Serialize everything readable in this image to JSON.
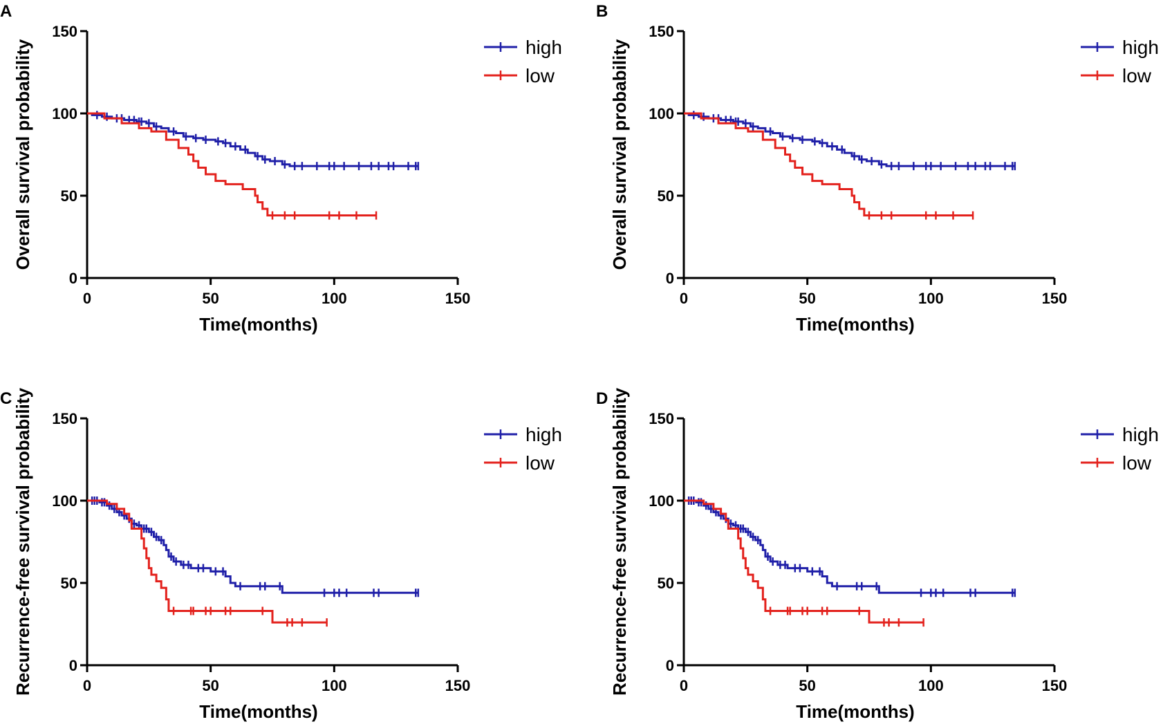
{
  "chart_data": [
    {
      "panel": "A",
      "type": "line",
      "title": "",
      "xlabel": "Time(months)",
      "ylabel": "Overall survival probability",
      "xlim": [
        0,
        150
      ],
      "ylim": [
        0,
        150
      ],
      "xticks": [
        0,
        50,
        100,
        150
      ],
      "yticks": [
        0,
        50,
        100,
        150
      ],
      "legend": "top-right",
      "series": [
        {
          "name": "high",
          "color": "#1f1fa8",
          "steps": [
            [
              0,
              100
            ],
            [
              2,
              99
            ],
            [
              6,
              98
            ],
            [
              10,
              97
            ],
            [
              15,
              96
            ],
            [
              20,
              95
            ],
            [
              24,
              94
            ],
            [
              27,
              92
            ],
            [
              30,
              91
            ],
            [
              33,
              89
            ],
            [
              36,
              88
            ],
            [
              39,
              86
            ],
            [
              43,
              85
            ],
            [
              47,
              84
            ],
            [
              52,
              83
            ],
            [
              55,
              82
            ],
            [
              58,
              80
            ],
            [
              62,
              78
            ],
            [
              65,
              76
            ],
            [
              68,
              74
            ],
            [
              71,
              72
            ],
            [
              74,
              71
            ],
            [
              79,
              69
            ],
            [
              82,
              68
            ],
            [
              134,
              68
            ]
          ],
          "censored": [
            4,
            8,
            12,
            14,
            17,
            19,
            21,
            22,
            25,
            28,
            35,
            40,
            44,
            48,
            53,
            56,
            60,
            64,
            69,
            72,
            76,
            80,
            84,
            87,
            93,
            98,
            100,
            104,
            110,
            115,
            118,
            122,
            124,
            130,
            133,
            134
          ]
        },
        {
          "name": "low",
          "color": "#e3211c",
          "steps": [
            [
              0,
              100
            ],
            [
              7,
              97
            ],
            [
              14,
              94
            ],
            [
              21,
              91
            ],
            [
              26,
              89
            ],
            [
              32,
              84
            ],
            [
              37,
              79
            ],
            [
              41,
              75
            ],
            [
              43,
              71
            ],
            [
              45,
              67
            ],
            [
              48,
              63
            ],
            [
              52,
              59
            ],
            [
              56,
              57
            ],
            [
              63,
              54
            ],
            [
              68,
              50
            ],
            [
              69,
              46
            ],
            [
              71,
              42
            ],
            [
              73,
              38
            ],
            [
              117,
              38
            ]
          ],
          "censored": [
            75,
            80,
            84,
            98,
            102,
            109,
            117
          ]
        }
      ]
    },
    {
      "panel": "B",
      "type": "line",
      "title": "",
      "xlabel": "Time(months)",
      "ylabel": "Overall survival probability",
      "xlim": [
        0,
        150
      ],
      "ylim": [
        0,
        150
      ],
      "xticks": [
        0,
        50,
        100,
        150
      ],
      "yticks": [
        0,
        50,
        100,
        150
      ],
      "legend": "top-right",
      "series": [
        {
          "name": "high",
          "color": "#1f1fa8",
          "steps": [
            [
              0,
              100
            ],
            [
              2,
              99
            ],
            [
              6,
              98
            ],
            [
              10,
              97
            ],
            [
              15,
              96
            ],
            [
              20,
              95
            ],
            [
              24,
              94
            ],
            [
              27,
              92
            ],
            [
              30,
              91
            ],
            [
              33,
              89
            ],
            [
              36,
              88
            ],
            [
              39,
              86
            ],
            [
              43,
              85
            ],
            [
              47,
              84
            ],
            [
              52,
              83
            ],
            [
              55,
              82
            ],
            [
              58,
              80
            ],
            [
              62,
              78
            ],
            [
              65,
              76
            ],
            [
              68,
              74
            ],
            [
              71,
              72
            ],
            [
              74,
              71
            ],
            [
              79,
              69
            ],
            [
              82,
              68
            ],
            [
              134,
              68
            ]
          ],
          "censored": [
            4,
            8,
            12,
            14,
            17,
            19,
            21,
            22,
            25,
            28,
            35,
            40,
            44,
            48,
            53,
            56,
            60,
            64,
            69,
            72,
            76,
            80,
            84,
            87,
            93,
            98,
            100,
            104,
            110,
            115,
            118,
            122,
            124,
            130,
            133,
            134
          ]
        },
        {
          "name": "low",
          "color": "#e3211c",
          "steps": [
            [
              0,
              100
            ],
            [
              7,
              97
            ],
            [
              14,
              94
            ],
            [
              21,
              91
            ],
            [
              26,
              89
            ],
            [
              32,
              84
            ],
            [
              37,
              79
            ],
            [
              41,
              75
            ],
            [
              43,
              71
            ],
            [
              45,
              67
            ],
            [
              48,
              63
            ],
            [
              52,
              59
            ],
            [
              56,
              57
            ],
            [
              63,
              54
            ],
            [
              68,
              50
            ],
            [
              69,
              46
            ],
            [
              71,
              42
            ],
            [
              73,
              38
            ],
            [
              117,
              38
            ]
          ],
          "censored": [
            75,
            80,
            84,
            98,
            102,
            109,
            117
          ]
        }
      ]
    },
    {
      "panel": "C",
      "type": "line",
      "title": "",
      "xlabel": "Time(months)",
      "ylabel": "Recurrence-free survival probability",
      "xlim": [
        0,
        150
      ],
      "ylim": [
        0,
        150
      ],
      "xticks": [
        0,
        50,
        100,
        150
      ],
      "yticks": [
        0,
        50,
        100,
        150
      ],
      "legend": "top-right",
      "series": [
        {
          "name": "high",
          "color": "#1f1fa8",
          "steps": [
            [
              0,
              100
            ],
            [
              5,
              99
            ],
            [
              8,
              97
            ],
            [
              10,
              95
            ],
            [
              12,
              93
            ],
            [
              14,
              91
            ],
            [
              16,
              89
            ],
            [
              18,
              86
            ],
            [
              20,
              85
            ],
            [
              22,
              83
            ],
            [
              25,
              81
            ],
            [
              27,
              78
            ],
            [
              29,
              76
            ],
            [
              31,
              73
            ],
            [
              32,
              70
            ],
            [
              33,
              66
            ],
            [
              35,
              63
            ],
            [
              38,
              61
            ],
            [
              42,
              59
            ],
            [
              50,
              57
            ],
            [
              56,
              54
            ],
            [
              58,
              50
            ],
            [
              60,
              48
            ],
            [
              78,
              48
            ],
            [
              79,
              44
            ],
            [
              134,
              44
            ]
          ],
          "censored": [
            2,
            3,
            4,
            6,
            7,
            9,
            11,
            13,
            15,
            17,
            19,
            21,
            23,
            24,
            26,
            28,
            30,
            34,
            36,
            39,
            41,
            45,
            47,
            52,
            55,
            62,
            70,
            72,
            78,
            96,
            100,
            102,
            105,
            116,
            118,
            133,
            134
          ]
        },
        {
          "name": "low",
          "color": "#e3211c",
          "steps": [
            [
              0,
              100
            ],
            [
              8,
              98
            ],
            [
              12,
              95
            ],
            [
              15,
              92
            ],
            [
              17,
              88
            ],
            [
              18,
              83
            ],
            [
              22,
              77
            ],
            [
              23,
              71
            ],
            [
              24,
              65
            ],
            [
              25,
              59
            ],
            [
              26,
              55
            ],
            [
              28,
              51
            ],
            [
              30,
              47
            ],
            [
              32,
              40
            ],
            [
              33,
              33
            ],
            [
              74,
              33
            ],
            [
              75,
              26
            ],
            [
              97,
              26
            ]
          ],
          "censored": [
            35,
            42,
            43,
            48,
            50,
            56,
            58,
            71,
            81,
            83,
            87,
            97
          ]
        }
      ]
    },
    {
      "panel": "D",
      "type": "line",
      "title": "",
      "xlabel": "Time(months)",
      "ylabel": "Recurrence-free survival probability",
      "xlim": [
        0,
        150
      ],
      "ylim": [
        0,
        150
      ],
      "xticks": [
        0,
        50,
        100,
        150
      ],
      "yticks": [
        0,
        50,
        100,
        150
      ],
      "legend": "top-right",
      "series": [
        {
          "name": "high",
          "color": "#1f1fa8",
          "steps": [
            [
              0,
              100
            ],
            [
              5,
              99
            ],
            [
              8,
              97
            ],
            [
              10,
              95
            ],
            [
              12,
              93
            ],
            [
              14,
              91
            ],
            [
              16,
              89
            ],
            [
              18,
              86
            ],
            [
              20,
              85
            ],
            [
              22,
              83
            ],
            [
              25,
              81
            ],
            [
              27,
              78
            ],
            [
              29,
              76
            ],
            [
              31,
              73
            ],
            [
              32,
              70
            ],
            [
              33,
              66
            ],
            [
              35,
              63
            ],
            [
              38,
              61
            ],
            [
              42,
              59
            ],
            [
              50,
              57
            ],
            [
              56,
              54
            ],
            [
              58,
              50
            ],
            [
              60,
              48
            ],
            [
              78,
              48
            ],
            [
              79,
              44
            ],
            [
              134,
              44
            ]
          ],
          "censored": [
            2,
            3,
            4,
            6,
            7,
            9,
            11,
            13,
            15,
            17,
            19,
            21,
            23,
            24,
            26,
            28,
            30,
            34,
            36,
            39,
            41,
            45,
            47,
            52,
            55,
            62,
            70,
            72,
            78,
            96,
            100,
            102,
            105,
            116,
            118,
            133,
            134
          ]
        },
        {
          "name": "low",
          "color": "#e3211c",
          "steps": [
            [
              0,
              100
            ],
            [
              8,
              98
            ],
            [
              12,
              95
            ],
            [
              15,
              92
            ],
            [
              17,
              88
            ],
            [
              18,
              83
            ],
            [
              22,
              77
            ],
            [
              23,
              71
            ],
            [
              24,
              65
            ],
            [
              25,
              59
            ],
            [
              26,
              55
            ],
            [
              28,
              51
            ],
            [
              30,
              47
            ],
            [
              32,
              40
            ],
            [
              33,
              33
            ],
            [
              74,
              33
            ],
            [
              75,
              26
            ],
            [
              97,
              26
            ]
          ],
          "censored": [
            35,
            42,
            43,
            48,
            50,
            56,
            58,
            71,
            81,
            83,
            87,
            97
          ]
        }
      ]
    }
  ]
}
